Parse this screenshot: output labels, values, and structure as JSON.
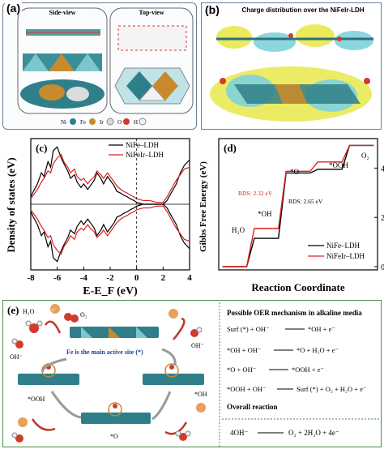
{
  "panel_a": {
    "tag": "(a)",
    "side_view": "Side-view",
    "top_view": "Top-view",
    "legend": [
      {
        "el": "Ni",
        "color": "#2f7f8a"
      },
      {
        "el": "Fe",
        "color": "#c98a2c"
      },
      {
        "el": "Ir",
        "color": "#d9d9d9"
      },
      {
        "el": "O",
        "color": "#d23a2a"
      },
      {
        "el": "H",
        "color": "#f2f2f2"
      }
    ]
  },
  "panel_b": {
    "tag": "(b)",
    "title": "Charge distribution over the NiFeIr-LDH"
  },
  "panel_c": {
    "tag": "(c)",
    "chart_data": {
      "type": "line",
      "xlabel": "E-E_F (eV)",
      "ylabel": "Density of states (eV)",
      "xlim": [
        -8,
        4
      ],
      "x_ticks": [
        "-8",
        "-6",
        "-4",
        "-2",
        "0",
        "2",
        "4"
      ],
      "series": [
        {
          "name": "NiFe–LDH",
          "color": "#000000",
          "x": [
            -8,
            -7.8,
            -7.5,
            -7.2,
            -7,
            -6.7,
            -6.5,
            -6.3,
            -6,
            -5.7,
            -5.5,
            -5.2,
            -5,
            -4.7,
            -4.5,
            -4.2,
            -4,
            -3.7,
            -3.5,
            -3.2,
            -3,
            -2.7,
            -2.5,
            -2.2,
            -2,
            -1.7,
            -1.5,
            -1.2,
            -1,
            -0.7,
            -0.5,
            -0.2,
            0,
            0.5,
            1,
            1.5,
            2,
            2.3,
            2.6,
            3,
            3.3,
            3.6,
            4
          ],
          "y": [
            8,
            14,
            22,
            34,
            30,
            46,
            40,
            58,
            62,
            50,
            44,
            36,
            28,
            32,
            24,
            18,
            22,
            16,
            20,
            26,
            34,
            28,
            22,
            30,
            26,
            20,
            14,
            12,
            10,
            8,
            6,
            4,
            2,
            0,
            0,
            0,
            0,
            4,
            12,
            22,
            34,
            42,
            48
          ]
        },
        {
          "name": "NiFeIr–LDH",
          "color": "#e02020",
          "x": [
            -8,
            -7.8,
            -7.5,
            -7.2,
            -7,
            -6.7,
            -6.5,
            -6.3,
            -6,
            -5.7,
            -5.5,
            -5.2,
            -5,
            -4.7,
            -4.5,
            -4.2,
            -4,
            -3.7,
            -3.5,
            -3.2,
            -3,
            -2.7,
            -2.5,
            -2.2,
            -2,
            -1.7,
            -1.5,
            -1.2,
            -1,
            -0.7,
            -0.5,
            -0.2,
            0,
            0.5,
            1,
            1.5,
            2,
            2.3,
            2.6,
            3,
            3.3,
            3.6,
            4
          ],
          "y": [
            6,
            10,
            16,
            24,
            28,
            36,
            34,
            44,
            50,
            54,
            46,
            40,
            34,
            38,
            30,
            26,
            28,
            22,
            26,
            30,
            36,
            32,
            28,
            34,
            30,
            24,
            20,
            16,
            14,
            12,
            10,
            8,
            6,
            4,
            4,
            2,
            2,
            8,
            16,
            26,
            32,
            38,
            40
          ]
        }
      ]
    }
  },
  "panel_d": {
    "tag": "(d)",
    "chart_data": {
      "type": "line",
      "xlabel": "Reaction Coordinate",
      "ylabel": "Gibbs Free Energy (eV)",
      "ylim": [
        0,
        5
      ],
      "y_ticks": [
        "0",
        "2",
        "4"
      ],
      "steps": [
        "H2O",
        "*OH",
        "*O",
        "*OOH",
        "O2"
      ],
      "series": [
        {
          "name": "NiFe–LDH",
          "color": "#000000",
          "values": [
            0,
            1.15,
            3.8,
            3.95,
            4.92
          ]
        },
        {
          "name": "NiFeIr–LDH",
          "color": "#e02020",
          "values": [
            0,
            1.55,
            3.87,
            4.25,
            4.92
          ]
        }
      ],
      "annotations": [
        {
          "text": "RDS: 2.32 eV",
          "color": "#e02020"
        },
        {
          "text": "RDS: 2.65 eV",
          "color": "#000000"
        }
      ],
      "step_labels": [
        "H₂O",
        "*OH",
        "*O",
        "*OOH",
        "O₂"
      ]
    }
  },
  "panel_e": {
    "tag": "(e)",
    "h2o_label": "H₂O",
    "o2_label": "O₂",
    "oh_label": "OH⁻",
    "e_label": "e⁻",
    "active_site_label": "Fe is the main active site (*)",
    "ooh_label": "*OOH",
    "o_label": "*O",
    "oh_site_label": "*OH",
    "mechanism_title": "Possible OER mechanism in alkaline media",
    "steps": [
      {
        "left": "Surf (*) + OH⁻",
        "right": "*OH + e⁻"
      },
      {
        "left": "*OH + OH⁻",
        "right": "*O + H₂O + e⁻"
      },
      {
        "left": "*O + OH⁻",
        "right": "*OOH + e⁻"
      },
      {
        "left": "*OOH + OH⁻",
        "right": "Surf (*) + O₂ + H₂O + e⁻"
      }
    ],
    "overall_title": "Overall reaction",
    "overall": {
      "left": "4OH⁻",
      "right": "O₂ + 2H₂O + 4e⁻"
    }
  }
}
